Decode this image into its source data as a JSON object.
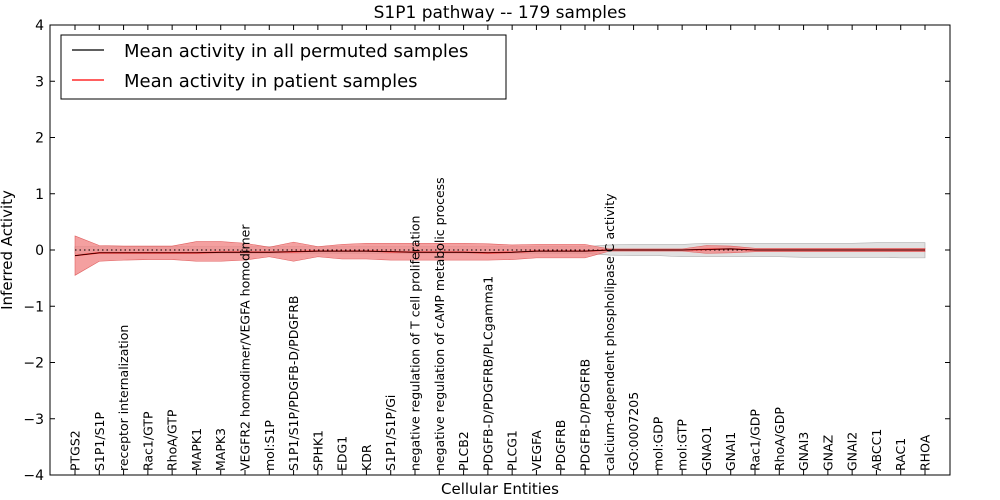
{
  "chart_data": {
    "type": "line",
    "title": "S1P1 pathway -- 179 samples",
    "xlabel": "Cellular Entities",
    "ylabel": "Inferred Activity",
    "ylim": [
      -4,
      4
    ],
    "yticks": [
      "−4",
      "−3",
      "−2",
      "−1",
      "0",
      "1",
      "2",
      "3",
      "4"
    ],
    "categories": [
      "PTGS2",
      "S1P1/S1P",
      "receptor internalization",
      "Rac1/GTP",
      "RhoA/GTP",
      "MAPK1",
      "MAPK3",
      "VEGFR2 homodimer/VEGFA homodimer",
      "mol:S1P",
      "S1P1/S1P/PDGFB-D/PDGFRB",
      "SPHK1",
      "EDG1",
      "KDR",
      "S1P1/S1P/Gi",
      "negative regulation of T cell proliferation",
      "negative regulation of cAMP metabolic process",
      "PLCB2",
      "PDGFB-D/PDGFRB/PLCgamma1",
      "PLCG1",
      "VEGFA",
      "PDGFRB",
      "PDGFB-D/PDGFRB",
      "calcium-dependent phospholipase C activity",
      "GO:0007205",
      "mol:GDP",
      "mol:GTP",
      "GNAO1",
      "GNAI1",
      "Rac1/GDP",
      "RhoA/GDP",
      "GNAI3",
      "GNAZ",
      "GNAI2",
      "ABCC1",
      "RAC1",
      "RHOA"
    ],
    "series": [
      {
        "name": "Mean activity in all permuted samples",
        "color": "#000000",
        "values": [
          0.0,
          0.0,
          0.0,
          0.0,
          0.0,
          0.0,
          0.0,
          0.0,
          0.0,
          0.0,
          0.0,
          0.0,
          0.0,
          0.0,
          0.0,
          0.0,
          0.0,
          0.0,
          0.0,
          0.0,
          0.0,
          0.0,
          0.0,
          0.0,
          0.0,
          0.0,
          0.0,
          0.0,
          0.0,
          0.0,
          0.0,
          0.0,
          0.0,
          0.0,
          0.0,
          0.0
        ],
        "band_upper": [
          0.06,
          0.06,
          0.06,
          0.06,
          0.06,
          0.06,
          0.06,
          0.06,
          0.06,
          0.06,
          0.06,
          0.06,
          0.06,
          0.06,
          0.06,
          0.06,
          0.06,
          0.06,
          0.06,
          0.06,
          0.06,
          0.06,
          0.09,
          0.1,
          0.1,
          0.1,
          0.12,
          0.12,
          0.12,
          0.12,
          0.12,
          0.12,
          0.12,
          0.13,
          0.13,
          0.13
        ],
        "band_lower": [
          -0.06,
          -0.06,
          -0.06,
          -0.06,
          -0.06,
          -0.06,
          -0.06,
          -0.06,
          -0.06,
          -0.06,
          -0.06,
          -0.06,
          -0.06,
          -0.06,
          -0.06,
          -0.06,
          -0.06,
          -0.06,
          -0.06,
          -0.06,
          -0.06,
          -0.06,
          -0.09,
          -0.1,
          -0.1,
          -0.12,
          -0.12,
          -0.12,
          -0.12,
          -0.12,
          -0.13,
          -0.13,
          -0.13,
          -0.13,
          -0.14,
          -0.14
        ]
      },
      {
        "name": "Mean activity in patient samples",
        "color": "#ff0000",
        "band_color": "#f08080",
        "values": [
          -0.1,
          -0.05,
          -0.05,
          -0.05,
          -0.05,
          -0.05,
          -0.04,
          -0.04,
          -0.04,
          -0.03,
          -0.02,
          -0.02,
          -0.02,
          -0.03,
          -0.04,
          -0.04,
          -0.04,
          -0.05,
          -0.04,
          -0.02,
          -0.02,
          -0.02,
          0.0,
          0.0,
          0.0,
          0.0,
          0.01,
          0.02,
          0.0,
          0.0,
          0.0,
          0.0,
          0.0,
          0.0,
          0.0,
          0.0
        ],
        "band_upper": [
          0.25,
          0.08,
          0.07,
          0.07,
          0.07,
          0.15,
          0.15,
          0.12,
          0.05,
          0.14,
          0.06,
          0.1,
          0.12,
          0.12,
          0.12,
          0.12,
          0.12,
          0.11,
          0.09,
          0.1,
          0.1,
          0.1,
          0.02,
          0.02,
          0.02,
          0.02,
          0.08,
          0.07,
          0.03,
          0.03,
          0.03,
          0.03,
          0.03,
          0.03,
          0.03,
          0.03
        ],
        "band_lower": [
          -0.45,
          -0.2,
          -0.18,
          -0.17,
          -0.17,
          -0.2,
          -0.2,
          -0.18,
          -0.12,
          -0.2,
          -0.12,
          -0.16,
          -0.16,
          -0.18,
          -0.18,
          -0.18,
          -0.18,
          -0.18,
          -0.17,
          -0.14,
          -0.14,
          -0.14,
          -0.02,
          -0.02,
          -0.02,
          -0.02,
          -0.06,
          -0.05,
          -0.03,
          -0.03,
          -0.03,
          -0.03,
          -0.03,
          -0.03,
          -0.03,
          -0.03
        ]
      }
    ],
    "legend": {
      "position": "top-left",
      "entries": [
        "Mean activity in all permuted samples",
        "Mean activity in patient samples"
      ]
    },
    "grid": false
  }
}
